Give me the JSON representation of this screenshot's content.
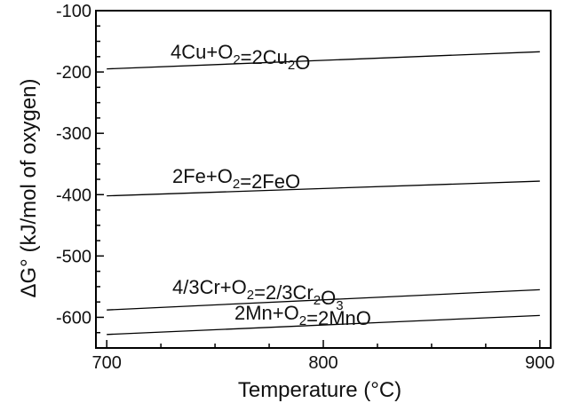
{
  "chart_data": {
    "type": "line",
    "title": "",
    "xlabel": "Temperature (°C)",
    "ylabel": "ΔG° (kJ/mol of oxygen)",
    "xlim": [
      695,
      905
    ],
    "ylim": [
      -650,
      -100
    ],
    "x_ticks": [
      700,
      800,
      900
    ],
    "y_ticks": [
      -100,
      -200,
      -300,
      -400,
      -500,
      -600
    ],
    "grid": false,
    "legend": "none",
    "series": [
      {
        "name": "4Cu+O₂=2Cu₂O",
        "x": [
          700,
          900
        ],
        "y": [
          -195,
          -167
        ]
      },
      {
        "name": "2Fe+O₂=2FeO",
        "x": [
          700,
          900
        ],
        "y": [
          -402,
          -378
        ]
      },
      {
        "name": "4/3Cr+O₂=2/3Cr₂O₃",
        "x": [
          700,
          900
        ],
        "y": [
          -588,
          -555
        ]
      },
      {
        "name": "2Mn+O₂=2MnO",
        "x": [
          700,
          900
        ],
        "y": [
          -628,
          -597
        ]
      }
    ]
  }
}
